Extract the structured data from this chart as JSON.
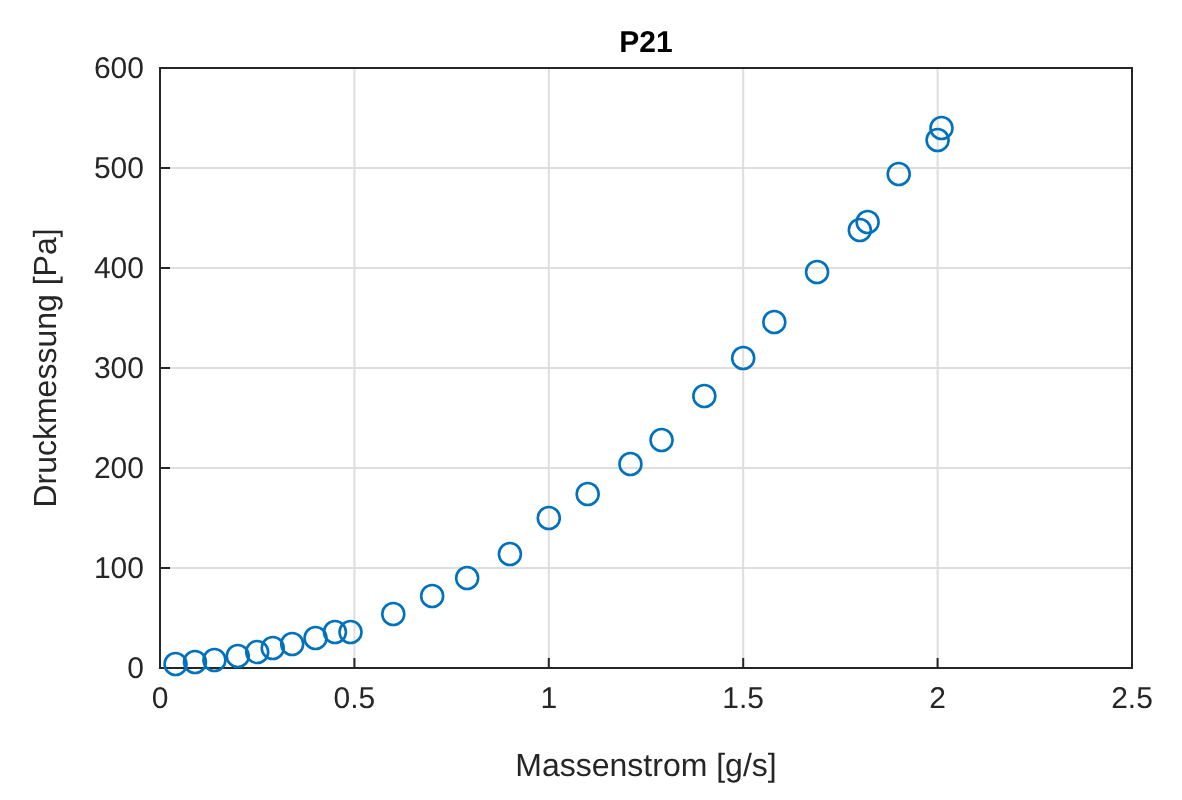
{
  "chart_data": {
    "type": "scatter",
    "title": "P21",
    "xlabel": "Massenstrom [g/s]",
    "ylabel": "Druckmessung [Pa]",
    "x": [
      0.04,
      0.09,
      0.14,
      0.2,
      0.25,
      0.29,
      0.34,
      0.4,
      0.45,
      0.49,
      0.6,
      0.7,
      0.79,
      0.9,
      1.0,
      1.1,
      1.21,
      1.29,
      1.4,
      1.5,
      1.58,
      1.69,
      1.8,
      1.82,
      1.9,
      2.0,
      2.01
    ],
    "series": [
      {
        "color": "#0072bd",
        "values": [
          4,
          6,
          8,
          12,
          16,
          20,
          24,
          30,
          36,
          36,
          54,
          72,
          90,
          114,
          150,
          174,
          204,
          228,
          272,
          310,
          346,
          396,
          438,
          446,
          494,
          528,
          540
        ]
      }
    ],
    "xlim": [
      0,
      2.5
    ],
    "xticks": [
      0,
      0.5,
      1,
      1.5,
      2,
      2.5
    ],
    "ylim": [
      0,
      600
    ],
    "yticks": [
      0,
      100,
      200,
      300,
      400,
      500,
      600
    ],
    "grid": true,
    "marker": "circle"
  }
}
